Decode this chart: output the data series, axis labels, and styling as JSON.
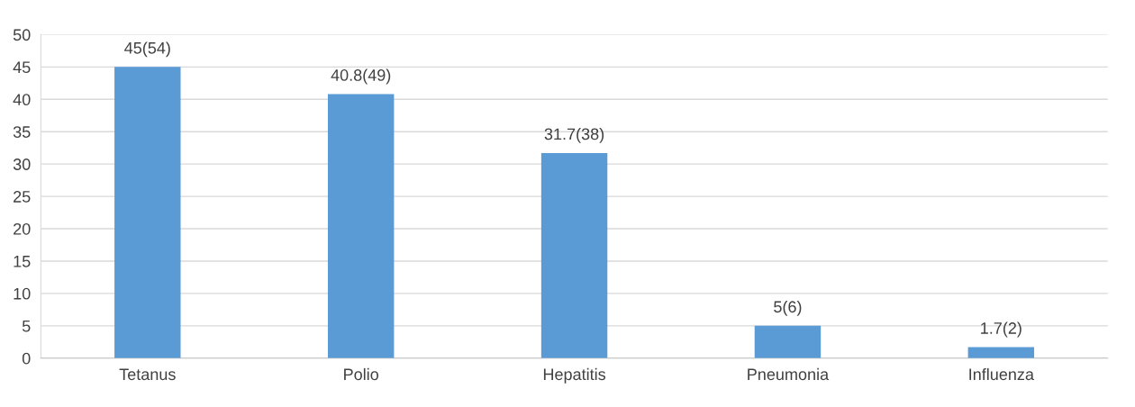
{
  "chart_data": {
    "type": "bar",
    "categories": [
      "Tetanus",
      "Polio",
      "Hepatitis",
      "Pneumonia",
      "Influenza"
    ],
    "values": [
      45,
      40.8,
      31.7,
      5,
      1.7
    ],
    "value_labels": [
      "45(54)",
      "40.8(49)",
      "31.7(38)",
      "5(6)",
      "1.7(2)"
    ],
    "color": "#5b9bd5",
    "ylim": [
      0,
      50
    ],
    "yticks": [
      0,
      5,
      10,
      15,
      20,
      25,
      30,
      35,
      40,
      45,
      50
    ],
    "grid": "y",
    "legend": false
  }
}
